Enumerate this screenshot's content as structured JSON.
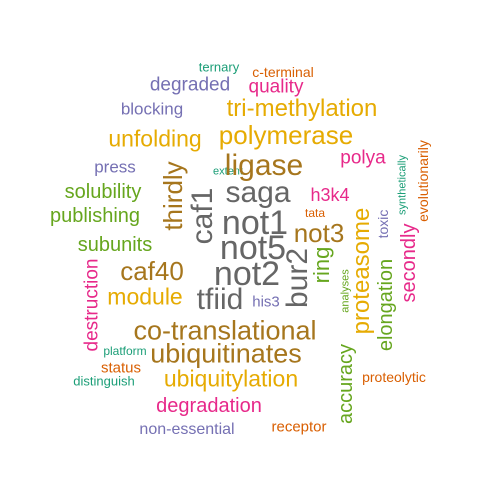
{
  "palette": {
    "teal": "#1b9e77",
    "orange": "#d95f02",
    "purple": "#7570b3",
    "magenta": "#e7298a",
    "green": "#66a61e",
    "gold": "#e6ab02",
    "brown": "#a6761d",
    "gray": "#666666"
  },
  "words": [
    {
      "text": "ternary",
      "color": "teal"
    },
    {
      "text": "c-terminal",
      "color": "orange"
    },
    {
      "text": "degraded",
      "color": "purple"
    },
    {
      "text": "quality",
      "color": "magenta"
    },
    {
      "text": "blocking",
      "color": "purple"
    },
    {
      "text": "tri-methylation",
      "color": "gold"
    },
    {
      "text": "unfolding",
      "color": "gold"
    },
    {
      "text": "polymerase",
      "color": "gold"
    },
    {
      "text": "press",
      "color": "purple"
    },
    {
      "text": "extent",
      "color": "teal"
    },
    {
      "text": "ligase",
      "color": "brown"
    },
    {
      "text": "polya",
      "color": "magenta"
    },
    {
      "text": "synthetically",
      "color": "teal"
    },
    {
      "text": "evolutionarily",
      "color": "orange"
    },
    {
      "text": "solubility",
      "color": "green"
    },
    {
      "text": "thirdly",
      "color": "brown"
    },
    {
      "text": "saga",
      "color": "gray"
    },
    {
      "text": "h3k4",
      "color": "magenta"
    },
    {
      "text": "publishing",
      "color": "green"
    },
    {
      "text": "caf1",
      "color": "gray"
    },
    {
      "text": "not1",
      "color": "gray"
    },
    {
      "text": "tata",
      "color": "orange"
    },
    {
      "text": "toxic",
      "color": "purple"
    },
    {
      "text": "subunits",
      "color": "green"
    },
    {
      "text": "not3",
      "color": "brown"
    },
    {
      "text": "not5",
      "color": "gray"
    },
    {
      "text": "secondly",
      "color": "magenta"
    },
    {
      "text": "caf40",
      "color": "brown"
    },
    {
      "text": "proteasome",
      "color": "gold"
    },
    {
      "text": "ring",
      "color": "green"
    },
    {
      "text": "not2",
      "color": "gray"
    },
    {
      "text": "bur2",
      "color": "gray"
    },
    {
      "text": "destruction",
      "color": "magenta"
    },
    {
      "text": "module",
      "color": "gold"
    },
    {
      "text": "analyses",
      "color": "green"
    },
    {
      "text": "elongation",
      "color": "green"
    },
    {
      "text": "tfiid",
      "color": "gray"
    },
    {
      "text": "his3",
      "color": "purple"
    },
    {
      "text": "co-translational",
      "color": "brown"
    },
    {
      "text": "platform",
      "color": "teal"
    },
    {
      "text": "ubiquitinates",
      "color": "brown"
    },
    {
      "text": "accuracy",
      "color": "green"
    },
    {
      "text": "status",
      "color": "orange"
    },
    {
      "text": "distinguish",
      "color": "teal"
    },
    {
      "text": "proteolytic",
      "color": "orange"
    },
    {
      "text": "ubiquitylation",
      "color": "gold"
    },
    {
      "text": "degradation",
      "color": "magenta"
    },
    {
      "text": "non-essential",
      "color": "purple"
    },
    {
      "text": "receptor",
      "color": "orange"
    }
  ]
}
